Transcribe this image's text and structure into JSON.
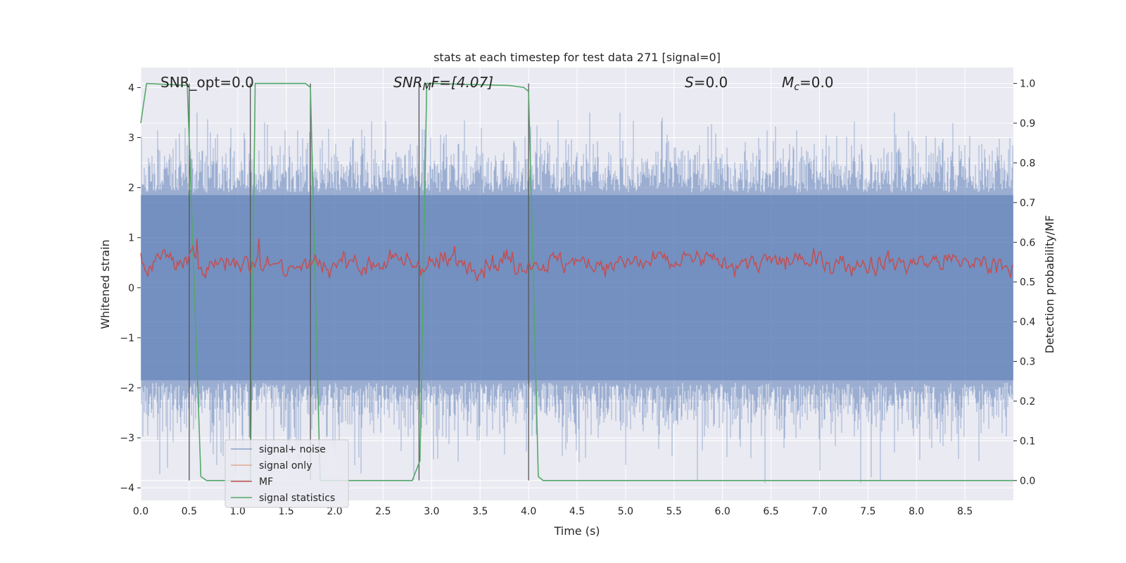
{
  "chart_data": {
    "type": "line",
    "title": "stats at each timestep for test data 271 [signal=0]",
    "xlabel": "Time (s)",
    "ylabel_left": "Whitened strain",
    "ylabel_right": "Detection probability/MF",
    "xlim": [
      0.0,
      9.0
    ],
    "ylim_left": [
      -4.25,
      4.4
    ],
    "ylim_right": [
      -0.05,
      1.04
    ],
    "x_ticks": [
      "0.0",
      "0.5",
      "1.0",
      "1.5",
      "2.0",
      "2.5",
      "3.0",
      "3.5",
      "4.0",
      "4.5",
      "5.0",
      "5.5",
      "6.0",
      "6.5",
      "7.0",
      "7.5",
      "8.0",
      "8.5"
    ],
    "x_tick_values": [
      0.0,
      0.5,
      1.0,
      1.5,
      2.0,
      2.5,
      3.0,
      3.5,
      4.0,
      4.5,
      5.0,
      5.5,
      6.0,
      6.5,
      7.0,
      7.5,
      8.0,
      8.5
    ],
    "y_left_ticks": [
      "4",
      "3",
      "2",
      "1",
      "0",
      "−1",
      "−2",
      "−3",
      "−4"
    ],
    "y_left_tick_values": [
      4,
      3,
      2,
      1,
      0,
      -1,
      -2,
      -3,
      -4
    ],
    "y_right_ticks": [
      "1.0",
      "0.9",
      "0.8",
      "0.7",
      "0.6",
      "0.5",
      "0.4",
      "0.3",
      "0.2",
      "0.1",
      "0.0"
    ],
    "y_right_tick_values": [
      1.0,
      0.9,
      0.8,
      0.7,
      0.6,
      0.5,
      0.4,
      0.3,
      0.2,
      0.1,
      0.0
    ],
    "grid": true,
    "legend_position": "lower-left",
    "annotations": {
      "snr_opt": "SNR_opt=0.0",
      "snr_mf_sym": "SNR",
      "snr_mf_sub": "M",
      "snr_mf_rest": "F=[4.07]",
      "s_sym": "S",
      "s_rest": "=0.0",
      "mc_sym": "M",
      "mc_sub": "c",
      "mc_rest": "=0.0"
    },
    "series": [
      {
        "name": "signal+ noise",
        "color": "#4c72b0",
        "axis": "left",
        "style": "noise",
        "amplitude_range": [
          -3.9,
          3.5
        ]
      },
      {
        "name": "signal only",
        "color": "#dd8452",
        "axis": "left",
        "values": []
      },
      {
        "name": "MF",
        "color": "#c44e52",
        "axis": "right",
        "style": "noise",
        "range": [
          0.5,
          0.62
        ]
      },
      {
        "name": "signal statistics",
        "color": "#55a868",
        "axis": "right",
        "x": [
          0.0,
          0.06,
          0.48,
          0.62,
          0.68,
          1.13,
          1.18,
          1.7,
          1.75,
          1.85,
          2.8,
          2.88,
          2.95,
          3.0,
          3.8,
          3.95,
          4.0,
          4.1,
          4.15,
          9.0
        ],
        "y": [
          0.9,
          1.0,
          0.995,
          0.01,
          0.0,
          0.0,
          1.0,
          1.0,
          0.99,
          0.0,
          0.0,
          0.05,
          1.0,
          1.0,
          0.995,
          0.99,
          0.98,
          0.01,
          0.0,
          0.0
        ]
      }
    ],
    "vlines": [
      0.5,
      1.13,
      1.75,
      2.87,
      4.0
    ],
    "colors": {
      "plot_bg": "#eaeaf2",
      "grid": "#ffffff",
      "noise": "#4c72b0",
      "signal_only": "#dd8452",
      "mf": "#c44e52",
      "stats": "#55a868",
      "vline": "#555555"
    }
  }
}
